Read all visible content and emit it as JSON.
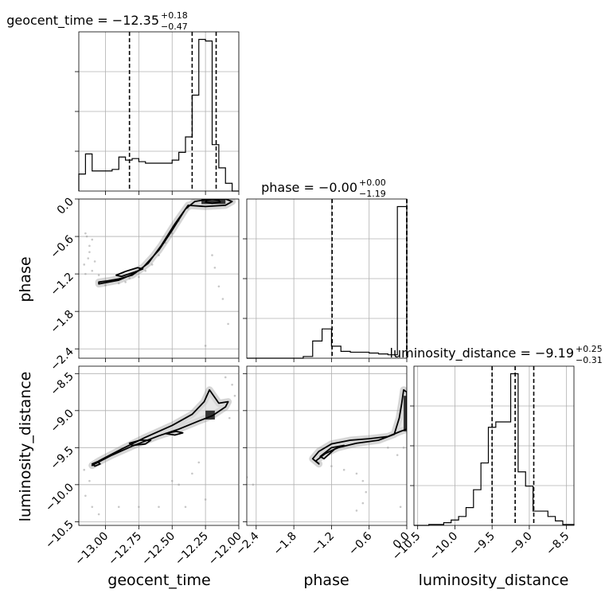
{
  "chart_data": {
    "type": "corner",
    "parameters": [
      "geocent_time",
      "phase",
      "luminosity_distance"
    ],
    "titles": [
      {
        "parameter": "geocent_time",
        "label": "geocent_time = ",
        "median": "−12.35",
        "upper": "+0.18",
        "lower": "−0.47"
      },
      {
        "parameter": "phase",
        "label": "phase = ",
        "median": "−0.00",
        "upper": "+0.00",
        "lower": "−1.19"
      },
      {
        "parameter": "luminosity_distance",
        "label": "luminosity_distance = ",
        "median": "−9.19",
        "upper": "+0.25",
        "lower": "−0.31"
      }
    ],
    "axis_labels": {
      "geocent_time": "geocent_time",
      "phase": "phase",
      "luminosity_distance": "luminosity_distance"
    },
    "ranges": {
      "geocent_time": [
        -13.2,
        -12.0
      ],
      "phase": [
        -2.55,
        0.0
      ],
      "luminosity_distance": [
        -10.55,
        -8.4
      ]
    },
    "ticks": {
      "geocent_time": [
        -13.0,
        -12.75,
        -12.5,
        -12.25,
        -12.0
      ],
      "phase": [
        -2.4,
        -1.8,
        -1.2,
        -0.6,
        0.0
      ],
      "luminosity_distance": [
        -10.5,
        -10.0,
        -9.5,
        -9.0,
        -8.5
      ]
    },
    "tick_labels": {
      "geocent_time": [
        "−13.00",
        "−12.75",
        "−12.50",
        "−12.25",
        "−12.00"
      ],
      "phase": [
        "−2.4",
        "−1.8",
        "−1.2",
        "−0.6",
        "0.0"
      ],
      "luminosity_distance": [
        "−10.5",
        "−10.0",
        "−9.5",
        "−9.0",
        "−8.5"
      ]
    },
    "quantiles": {
      "geocent_time": [
        -12.82,
        -12.35,
        -12.17
      ],
      "phase": [
        -1.19,
        -0.0,
        0.0
      ],
      "luminosity_distance": [
        -9.5,
        -9.19,
        -8.94
      ]
    },
    "histograms": {
      "geocent_time": {
        "edges": [
          -13.2,
          -13.15,
          -13.1,
          -13.05,
          -13.0,
          -12.95,
          -12.9,
          -12.85,
          -12.8,
          -12.75,
          -12.7,
          -12.65,
          -12.6,
          -12.55,
          -12.5,
          -12.45,
          -12.4,
          -12.35,
          -12.3,
          -12.25,
          -12.2,
          -12.15,
          -12.1,
          -12.05,
          -12.0
        ],
        "counts": [
          0.11,
          0.24,
          0.13,
          0.13,
          0.13,
          0.14,
          0.22,
          0.2,
          0.21,
          0.19,
          0.18,
          0.18,
          0.18,
          0.18,
          0.2,
          0.25,
          0.35,
          0.62,
          0.98,
          0.97,
          0.3,
          0.15,
          0.05,
          0.0
        ]
      },
      "phase": {
        "edges": [
          -2.55,
          -2.4,
          -2.25,
          -2.1,
          -1.95,
          -1.8,
          -1.65,
          -1.5,
          -1.35,
          -1.2,
          -1.05,
          -0.9,
          -0.75,
          -0.6,
          -0.45,
          -0.3,
          -0.15,
          0.0
        ],
        "counts": [
          0.0,
          0.0,
          0.0,
          0.0,
          0.0,
          0.0,
          0.01,
          0.1,
          0.17,
          0.07,
          0.04,
          0.035,
          0.035,
          0.03,
          0.025,
          0.02,
          0.88
        ]
      },
      "luminosity_distance": {
        "edges": [
          -10.55,
          -10.45,
          -10.35,
          -10.25,
          -10.15,
          -10.05,
          -9.95,
          -9.85,
          -9.75,
          -9.65,
          -9.55,
          -9.45,
          -9.35,
          -9.25,
          -9.15,
          -9.05,
          -8.95,
          -8.85,
          -8.75,
          -8.65,
          -8.55,
          -8.4
        ],
        "counts": [
          0.0,
          0.0,
          0.005,
          0.005,
          0.015,
          0.03,
          0.05,
          0.1,
          0.2,
          0.35,
          0.55,
          0.58,
          0.58,
          0.85,
          0.3,
          0.22,
          0.08,
          0.08,
          0.05,
          0.025,
          0.005
        ]
      }
    },
    "density_panels": [
      {
        "x": "geocent_time",
        "y": "phase",
        "levels": [
          [
            [
              -13.05,
              -1.33
            ],
            [
              -12.98,
              -1.31
            ],
            [
              -12.9,
              -1.28
            ],
            [
              -12.8,
              -1.22
            ],
            [
              -12.72,
              -1.1
            ],
            [
              -12.6,
              -0.82
            ],
            [
              -12.5,
              -0.5
            ],
            [
              -12.4,
              -0.16
            ],
            [
              -12.33,
              -0.04
            ],
            [
              -12.22,
              0.0
            ],
            [
              -12.1,
              0.0
            ],
            [
              -12.05,
              -0.04
            ],
            [
              -12.1,
              -0.1
            ],
            [
              -12.25,
              -0.12
            ],
            [
              -12.38,
              -0.1
            ],
            [
              -12.48,
              -0.4
            ],
            [
              -12.58,
              -0.74
            ],
            [
              -12.68,
              -1.03
            ],
            [
              -12.78,
              -1.19
            ],
            [
              -12.9,
              -1.3
            ],
            [
              -13.05,
              -1.36
            ]
          ],
          [
            [
              -12.88,
              -1.24
            ],
            [
              -12.78,
              -1.17
            ],
            [
              -12.72,
              -1.12
            ],
            [
              -12.76,
              -1.1
            ],
            [
              -12.85,
              -1.16
            ],
            [
              -12.92,
              -1.22
            ]
          ],
          [
            [
              -12.24,
              -0.02
            ],
            [
              -12.2,
              0.0
            ],
            [
              -12.15,
              -0.02
            ],
            [
              -12.14,
              -0.05
            ],
            [
              -12.2,
              -0.07
            ],
            [
              -12.25,
              -0.05
            ]
          ]
        ],
        "peak_region": [
          [
            -12.28,
            -0.08
          ],
          [
            -12.1,
            0.0
          ]
        ],
        "scatter": [
          [
            -13.15,
            -0.55
          ],
          [
            -13.12,
            -0.75
          ],
          [
            -13.1,
            -0.65
          ],
          [
            -13.13,
            -0.95
          ],
          [
            -13.16,
            -1.05
          ],
          [
            -13.1,
            -1.15
          ],
          [
            -13.05,
            -1.22
          ],
          [
            -13.14,
            -0.6
          ],
          [
            -13.12,
            -0.85
          ],
          [
            -13.08,
            -1.0
          ],
          [
            -13.15,
            -1.2
          ],
          [
            -12.95,
            -1.3
          ],
          [
            -12.85,
            -1.33
          ],
          [
            -12.75,
            -1.25
          ],
          [
            -12.7,
            -1.15
          ],
          [
            -12.6,
            -0.9
          ],
          [
            -12.55,
            -0.7
          ],
          [
            -12.45,
            -0.35
          ],
          [
            -12.38,
            -0.15
          ],
          [
            -12.2,
            -0.9
          ],
          [
            -12.18,
            -1.1
          ],
          [
            -12.15,
            -1.4
          ],
          [
            -12.12,
            -1.6
          ],
          [
            -12.08,
            -2.0
          ],
          [
            -12.25,
            -2.35
          ],
          [
            -12.82,
            -1.27
          ],
          [
            -13.0,
            -1.38
          ],
          [
            -12.9,
            -1.35
          ],
          [
            -12.65,
            -1.05
          ],
          [
            -12.5,
            -0.55
          ]
        ]
      },
      {
        "x": "geocent_time",
        "y": "luminosity_distance",
        "levels": [
          [
            [
              -13.08,
              -9.72
            ],
            [
              -12.95,
              -9.6
            ],
            [
              -12.8,
              -9.48
            ],
            [
              -12.6,
              -9.34
            ],
            [
              -12.45,
              -9.25
            ],
            [
              -12.3,
              -9.14
            ],
            [
              -12.2,
              -9.07
            ],
            [
              -12.1,
              -8.95
            ],
            [
              -12.08,
              -8.88
            ],
            [
              -12.15,
              -8.9
            ],
            [
              -12.22,
              -8.72
            ],
            [
              -12.26,
              -8.88
            ],
            [
              -12.35,
              -9.05
            ],
            [
              -12.5,
              -9.2
            ],
            [
              -12.7,
              -9.36
            ],
            [
              -12.88,
              -9.52
            ],
            [
              -13.05,
              -9.68
            ],
            [
              -13.1,
              -9.74
            ]
          ],
          [
            [
              -12.82,
              -9.44
            ],
            [
              -12.74,
              -9.4
            ],
            [
              -12.66,
              -9.4
            ],
            [
              -12.7,
              -9.45
            ],
            [
              -12.8,
              -9.47
            ]
          ],
          [
            [
              -12.55,
              -9.31
            ],
            [
              -12.47,
              -9.28
            ],
            [
              -12.42,
              -9.3
            ],
            [
              -12.48,
              -9.33
            ]
          ],
          [
            [
              -13.1,
              -9.72
            ],
            [
              -13.06,
              -9.69
            ],
            [
              -13.04,
              -9.72
            ],
            [
              -13.08,
              -9.75
            ]
          ]
        ],
        "peak_region": [
          [
            -12.25,
            -9.12
          ],
          [
            -12.18,
            -9.0
          ]
        ],
        "scatter": [
          [
            -13.15,
            -10.15
          ],
          [
            -13.1,
            -10.3
          ],
          [
            -13.05,
            -10.4
          ],
          [
            -12.9,
            -10.3
          ],
          [
            -12.75,
            -10.3
          ],
          [
            -12.6,
            -10.3
          ],
          [
            -12.4,
            -10.3
          ],
          [
            -12.25,
            -10.2
          ],
          [
            -12.3,
            -9.7
          ],
          [
            -12.35,
            -9.85
          ],
          [
            -12.45,
            -10.0
          ],
          [
            -12.5,
            -9.95
          ],
          [
            -12.05,
            -8.65
          ],
          [
            -12.03,
            -8.8
          ],
          [
            -12.1,
            -8.55
          ],
          [
            -12.07,
            -9.1
          ],
          [
            -13.12,
            -9.95
          ],
          [
            -13.16,
            -9.8
          ]
        ]
      },
      {
        "x": "phase",
        "y": "luminosity_distance",
        "levels": [
          [
            [
              -1.5,
              -9.65
            ],
            [
              -1.4,
              -9.55
            ],
            [
              -1.2,
              -9.45
            ],
            [
              -0.9,
              -9.4
            ],
            [
              -0.6,
              -9.38
            ],
            [
              -0.3,
              -9.35
            ],
            [
              -0.1,
              -9.28
            ],
            [
              0.0,
              -9.25
            ],
            [
              0.0,
              -8.75
            ],
            [
              -0.05,
              -8.72
            ],
            [
              -0.08,
              -8.9
            ],
            [
              -0.12,
              -9.1
            ],
            [
              -0.2,
              -9.32
            ],
            [
              -0.45,
              -9.4
            ],
            [
              -0.8,
              -9.44
            ],
            [
              -1.1,
              -9.5
            ],
            [
              -1.3,
              -9.58
            ],
            [
              -1.45,
              -9.68
            ],
            [
              -1.4,
              -9.72
            ]
          ],
          [
            [
              -1.38,
              -9.62
            ],
            [
              -1.2,
              -9.5
            ],
            [
              -1.0,
              -9.47
            ],
            [
              -1.15,
              -9.52
            ],
            [
              -1.32,
              -9.65
            ]
          ]
        ],
        "peak_region": [
          [
            -0.05,
            -9.28
          ],
          [
            0.0,
            -8.8
          ]
        ],
        "scatter": [
          [
            -1.4,
            -9.7
          ],
          [
            -1.2,
            -9.75
          ],
          [
            -1.0,
            -9.8
          ],
          [
            -0.8,
            -9.85
          ],
          [
            -0.7,
            -9.95
          ],
          [
            -0.65,
            -10.1
          ],
          [
            -0.7,
            -10.25
          ],
          [
            -0.8,
            -10.35
          ],
          [
            -2.55,
            -9.9
          ],
          [
            -2.45,
            -10.0
          ],
          [
            -0.1,
            -10.3
          ],
          [
            -0.05,
            -9.5
          ],
          [
            -0.15,
            -9.6
          ],
          [
            -0.3,
            -9.5
          ]
        ]
      }
    ]
  }
}
